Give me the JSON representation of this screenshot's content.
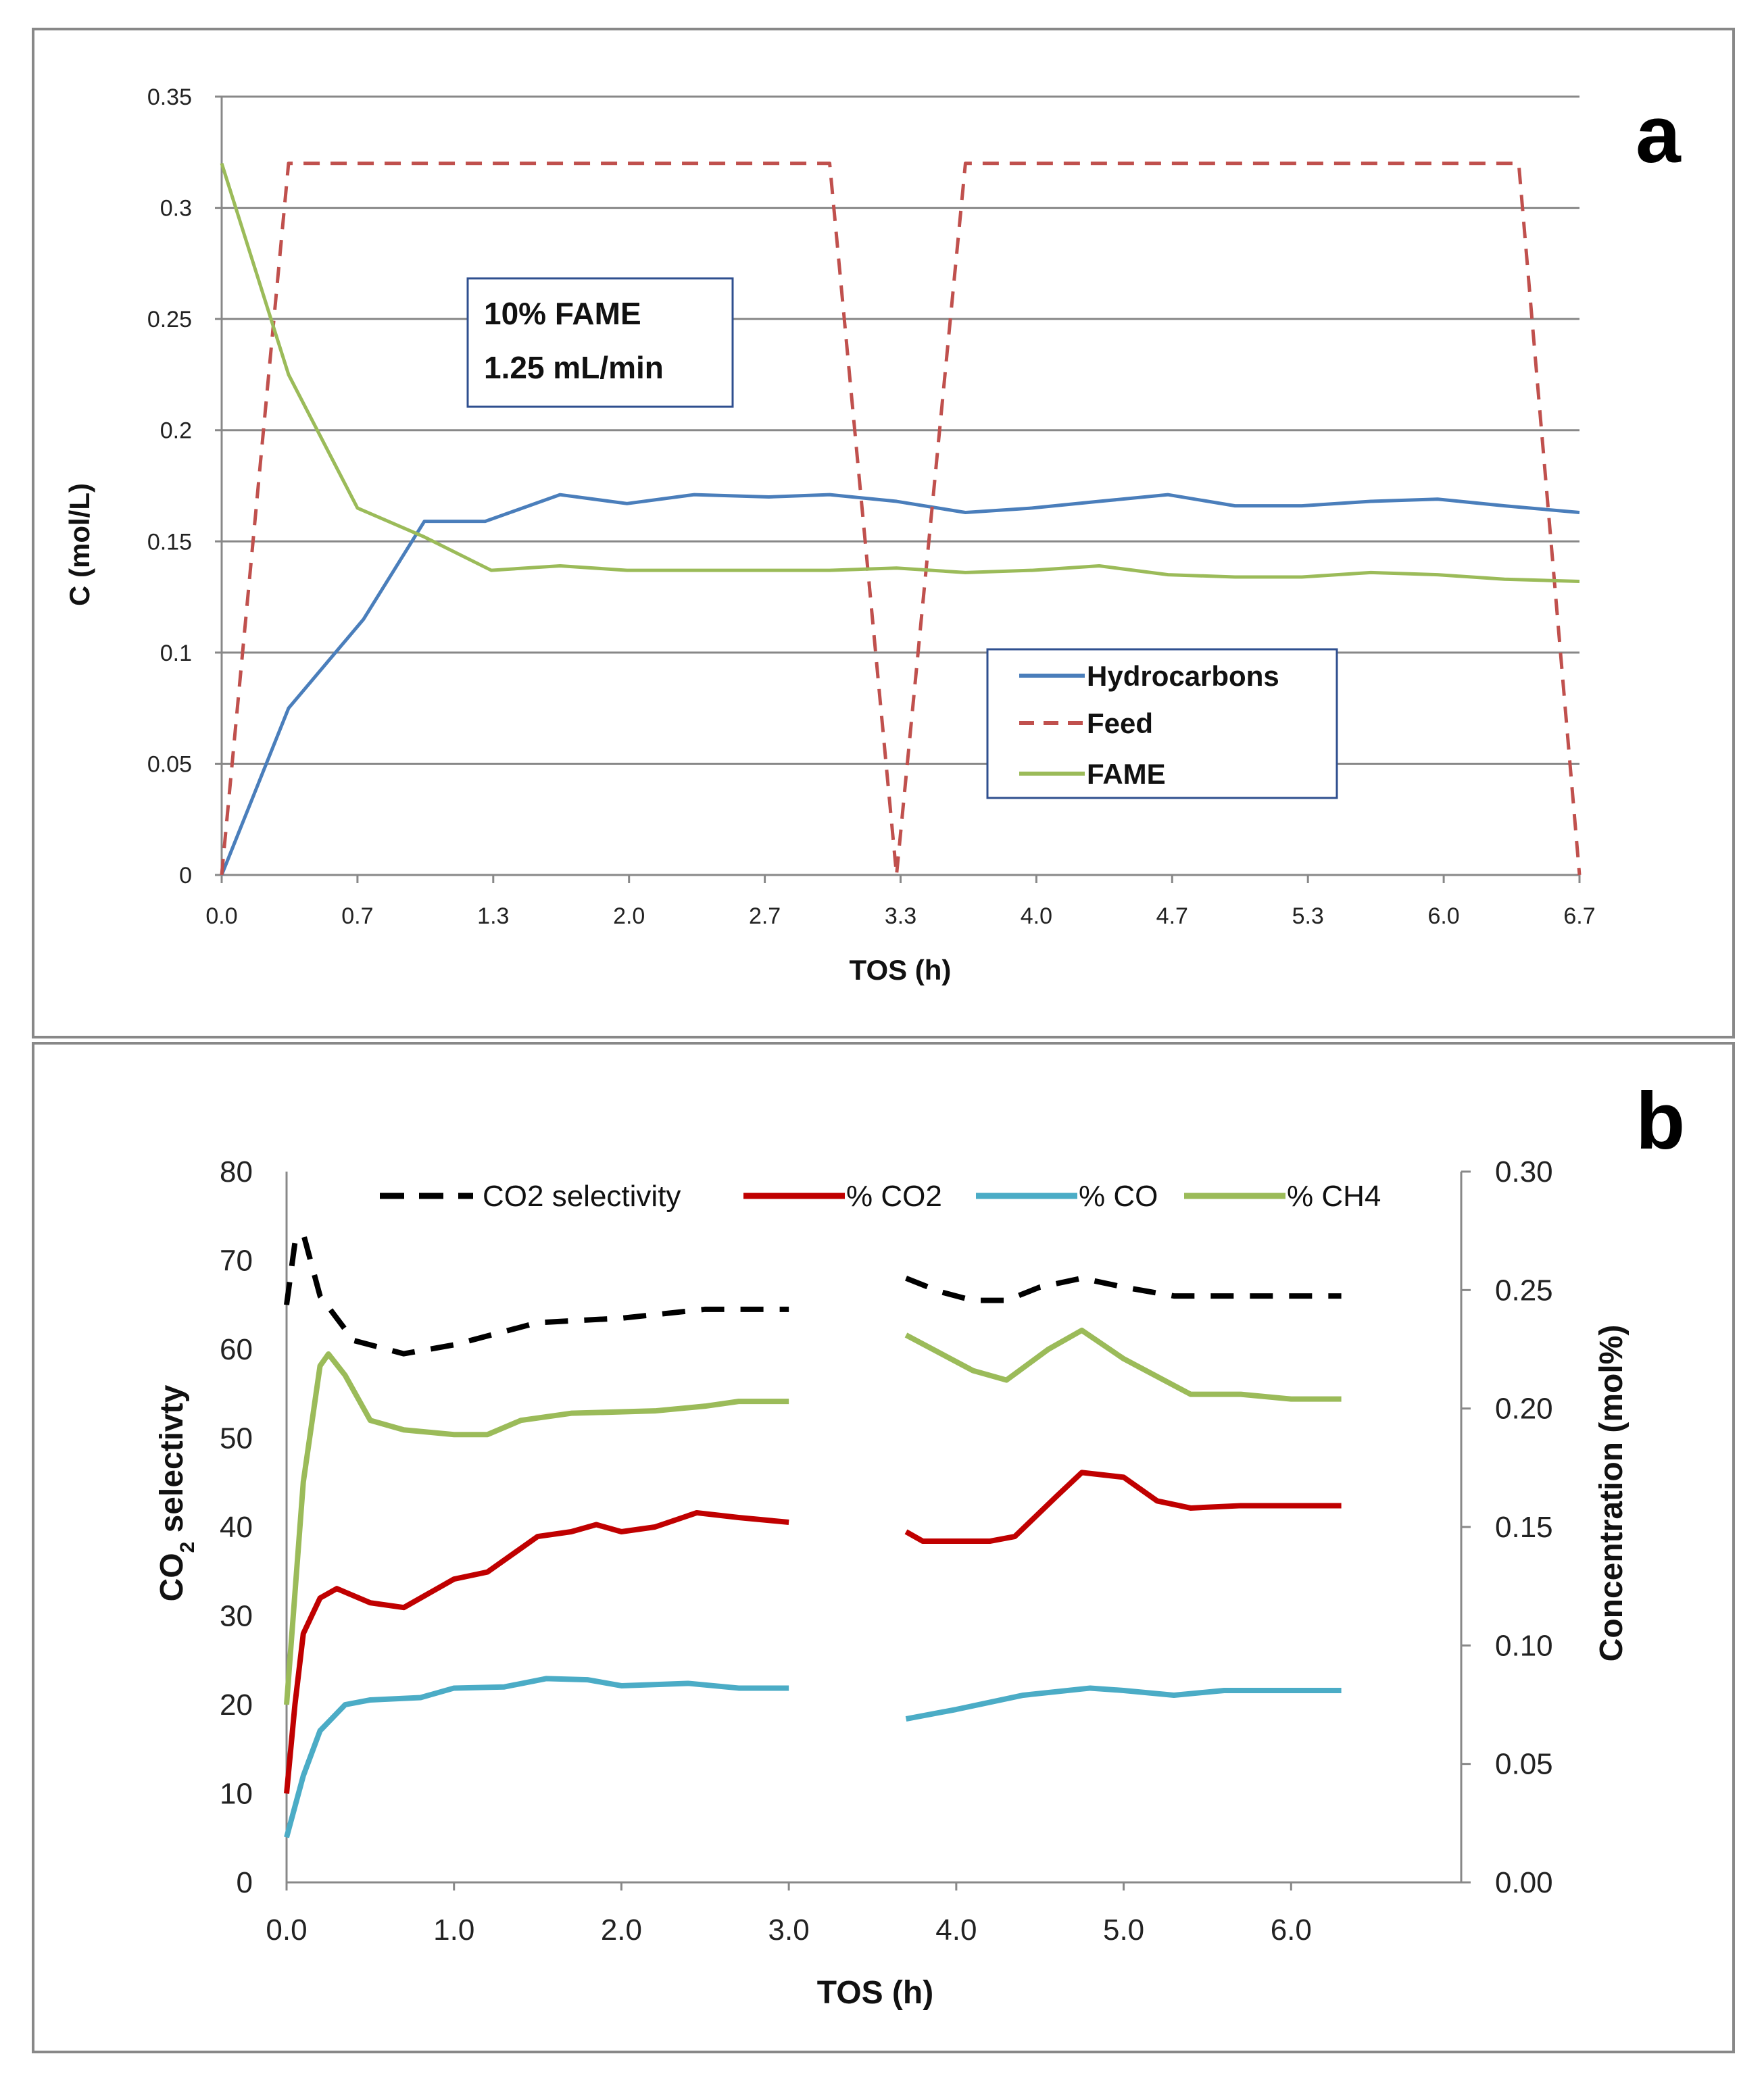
{
  "chart_data": [
    {
      "type": "line",
      "panel_label": "a",
      "xlabel": "TOS (h)",
      "ylabel": "C (mol/L)",
      "xlim": [
        0,
        6.7
      ],
      "ylim": [
        0,
        0.35
      ],
      "x_ticks": [
        "0.0",
        "0.7",
        "1.3",
        "2.0",
        "2.7",
        "3.3",
        "4.0",
        "4.7",
        "5.3",
        "6.0",
        "6.7"
      ],
      "y_ticks": [
        "0",
        "0.05",
        "0.1",
        "0.15",
        "0.2",
        "0.25",
        "0.3",
        "0.35"
      ],
      "grid": true,
      "annotation": [
        "10% FAME",
        "1.25 mL/min"
      ],
      "legend_position": "lower-right",
      "series": [
        {
          "name": "Hydrocarbons",
          "color": "#4a7ebb",
          "dash": "solid",
          "x": [
            0,
            0.33,
            0.7,
            1.0,
            1.3,
            1.67,
            2.0,
            2.33,
            2.7,
            3.0,
            3.33,
            3.67,
            4.0,
            4.33,
            4.67,
            5.0,
            5.33,
            5.67,
            6.0,
            6.33,
            6.7
          ],
          "y": [
            0,
            0.075,
            0.115,
            0.159,
            0.159,
            0.171,
            0.167,
            0.171,
            0.17,
            0.171,
            0.168,
            0.163,
            0.165,
            0.168,
            0.171,
            0.166,
            0.166,
            0.168,
            0.169,
            0.166,
            0.163
          ]
        },
        {
          "name": "Feed",
          "color": "#c0504d",
          "dash": "dashed",
          "x": [
            0,
            0.33,
            3.0,
            3.33,
            3.67,
            6.4,
            6.7
          ],
          "y": [
            0,
            0.32,
            0.32,
            0,
            0.32,
            0.32,
            0
          ]
        },
        {
          "name": "FAME",
          "color": "#9bbb59",
          "dash": "solid",
          "x": [
            0,
            0.33,
            0.67,
            1.0,
            1.33,
            1.67,
            2.0,
            2.33,
            2.7,
            3.0,
            3.33,
            3.67,
            4.0,
            4.33,
            4.67,
            5.0,
            5.33,
            5.67,
            6.0,
            6.33,
            6.7
          ],
          "y": [
            0.32,
            0.225,
            0.165,
            0.152,
            0.137,
            0.139,
            0.137,
            0.137,
            0.137,
            0.137,
            0.138,
            0.136,
            0.137,
            0.139,
            0.135,
            0.134,
            0.134,
            0.136,
            0.135,
            0.133,
            0.132
          ]
        }
      ]
    },
    {
      "type": "line",
      "panel_label": "b",
      "xlabel": "TOS (h)",
      "ylabel": "CO2 selectivty",
      "ylabel_main": "CO",
      "ylabel_sub": "2",
      "ylabel_rest": " selectivty",
      "y2label": "Concentration (mol%)",
      "xlim": [
        0,
        7.0
      ],
      "ylim": [
        0,
        80
      ],
      "y2lim": [
        0,
        0.3
      ],
      "x_ticks": [
        "0.0",
        "1.0",
        "2.0",
        "3.0",
        "4.0",
        "5.0",
        "6.0"
      ],
      "y_ticks": [
        "0",
        "10",
        "20",
        "30",
        "40",
        "50",
        "60",
        "70",
        "80"
      ],
      "y2_ticks": [
        "0.00",
        "0.05",
        "0.10",
        "0.15",
        "0.20",
        "0.25",
        "0.30"
      ],
      "grid": false,
      "legend_position": "top",
      "series": [
        {
          "name": "CO2 selectivity",
          "axis": "left",
          "color": "#000000",
          "dash": "dashed",
          "segments": [
            {
              "x": [
                0,
                0.05,
                0.1,
                0.2,
                0.4,
                0.7,
                1.0,
                1.3,
                1.5,
                2.0,
                2.5,
                3.0
              ],
              "y": [
                65,
                72,
                73,
                66,
                61,
                59.5,
                60.5,
                62,
                63,
                63.5,
                64.5,
                64.5
              ]
            },
            {
              "x": [
                3.7,
                3.9,
                4.1,
                4.3,
                4.5,
                4.75,
                5.0,
                5.3,
                5.6,
                6.0,
                6.3
              ],
              "y": [
                68,
                66.5,
                65.5,
                65.5,
                67,
                68,
                67,
                66,
                66,
                66,
                66
              ]
            }
          ]
        },
        {
          "name": "% CO2",
          "axis": "right",
          "color": "#c00000",
          "dash": "solid",
          "segments": [
            {
              "x": [
                0,
                0.05,
                0.1,
                0.2,
                0.3,
                0.5,
                0.7,
                1.0,
                1.2,
                1.5,
                1.7,
                1.85,
                2.0,
                2.2,
                2.45,
                2.7,
                3.0
              ],
              "y": [
                0.0375,
                0.075,
                0.105,
                0.12,
                0.124,
                0.118,
                0.116,
                0.128,
                0.131,
                0.146,
                0.148,
                0.151,
                0.148,
                0.15,
                0.156,
                0.154,
                0.152
              ]
            },
            {
              "x": [
                3.7,
                3.8,
                4.2,
                4.35,
                4.6,
                4.75,
                5.0,
                5.2,
                5.4,
                5.7,
                6.3
              ],
              "y": [
                0.148,
                0.144,
                0.144,
                0.146,
                0.163,
                0.173,
                0.171,
                0.161,
                0.158,
                0.159,
                0.159
              ]
            }
          ]
        },
        {
          "name": "% CO",
          "axis": "right",
          "color": "#4bacc6",
          "dash": "solid",
          "segments": [
            {
              "x": [
                0,
                0.1,
                0.2,
                0.35,
                0.5,
                0.8,
                1.0,
                1.3,
                1.55,
                1.8,
                2.0,
                2.4,
                2.7,
                3.0
              ],
              "y": [
                0.019,
                0.045,
                0.064,
                0.075,
                0.077,
                0.078,
                0.082,
                0.0825,
                0.086,
                0.0855,
                0.083,
                0.084,
                0.082,
                0.082
              ]
            },
            {
              "x": [
                3.7,
                4.0,
                4.4,
                4.8,
                5.0,
                5.3,
                5.6,
                6.3
              ],
              "y": [
                0.069,
                0.073,
                0.079,
                0.082,
                0.081,
                0.079,
                0.081,
                0.081
              ]
            }
          ]
        },
        {
          "name": "% CH4",
          "axis": "right",
          "color": "#9bbb59",
          "dash": "solid",
          "segments": [
            {
              "x": [
                0,
                0.1,
                0.2,
                0.25,
                0.35,
                0.5,
                0.7,
                1.0,
                1.2,
                1.4,
                1.7,
                2.2,
                2.5,
                2.7,
                3.0
              ],
              "y": [
                0.075,
                0.169,
                0.218,
                0.223,
                0.214,
                0.195,
                0.191,
                0.189,
                0.189,
                0.195,
                0.198,
                0.199,
                0.201,
                0.203,
                0.203
              ]
            },
            {
              "x": [
                3.7,
                4.1,
                4.3,
                4.55,
                4.75,
                5.0,
                5.4,
                5.7,
                6.0,
                6.3
              ],
              "y": [
                0.231,
                0.216,
                0.212,
                0.225,
                0.233,
                0.221,
                0.206,
                0.206,
                0.204,
                0.204
              ]
            }
          ]
        }
      ]
    }
  ]
}
